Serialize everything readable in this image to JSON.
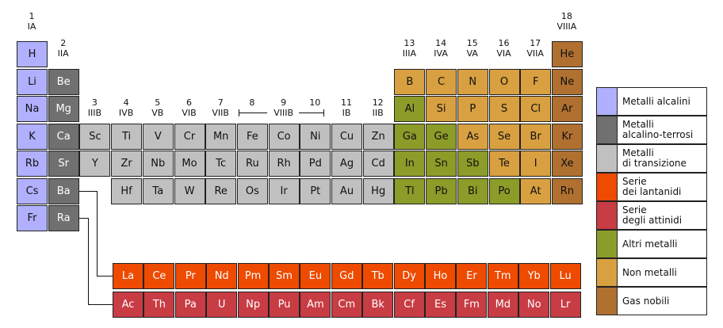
{
  "colors": {
    "alkali": "#b0b0ff",
    "alkaline_earth": "#707070",
    "transition": "#c0c0c0",
    "lanthanide": "#ee4a00",
    "actinide": "#c83c44",
    "other_metal": "#8c9c28",
    "nonmetal": "#d8a040",
    "noble_gas": "#b07030"
  },
  "group_labels": [
    {
      "num": "1",
      "roman": "IA",
      "col": 1,
      "row": 0
    },
    {
      "num": "2",
      "roman": "IIA",
      "col": 2,
      "row": 1
    },
    {
      "num": "3",
      "roman": "IIIB",
      "col": 3,
      "row": 3
    },
    {
      "num": "4",
      "roman": "IVB",
      "col": 4,
      "row": 3
    },
    {
      "num": "5",
      "roman": "VB",
      "col": 5,
      "row": 3
    },
    {
      "num": "6",
      "roman": "VIB",
      "col": 6,
      "row": 3
    },
    {
      "num": "7",
      "roman": "VIIB",
      "col": 7,
      "row": 3
    },
    {
      "num": "8",
      "roman": "",
      "col": 8,
      "row": 3
    },
    {
      "num": "9",
      "roman": "VIIIB",
      "col": 9,
      "row": 3
    },
    {
      "num": "10",
      "roman": "",
      "col": 10,
      "row": 3
    },
    {
      "num": "11",
      "roman": "IB",
      "col": 11,
      "row": 3
    },
    {
      "num": "12",
      "roman": "IIB",
      "col": 12,
      "row": 3
    },
    {
      "num": "13",
      "roman": "IIIA",
      "col": 13,
      "row": 1
    },
    {
      "num": "14",
      "roman": "IVA",
      "col": 14,
      "row": 1
    },
    {
      "num": "15",
      "roman": "VA",
      "col": 15,
      "row": 1
    },
    {
      "num": "16",
      "roman": "VIA",
      "col": 16,
      "row": 1
    },
    {
      "num": "17",
      "roman": "VIIA",
      "col": 17,
      "row": 1
    },
    {
      "num": "18",
      "roman": "VIIIA",
      "col": 18,
      "row": 0
    }
  ],
  "elements": [
    {
      "symbol": "H",
      "col": 1,
      "row": 1,
      "category": "alkali"
    },
    {
      "symbol": "He",
      "col": 18,
      "row": 1,
      "category": "noble_gas"
    },
    {
      "symbol": "Li",
      "col": 1,
      "row": 2,
      "category": "alkali"
    },
    {
      "symbol": "Be",
      "col": 2,
      "row": 2,
      "category": "alkaline_earth"
    },
    {
      "symbol": "B",
      "col": 13,
      "row": 2,
      "category": "nonmetal"
    },
    {
      "symbol": "C",
      "col": 14,
      "row": 2,
      "category": "nonmetal"
    },
    {
      "symbol": "N",
      "col": 15,
      "row": 2,
      "category": "nonmetal"
    },
    {
      "symbol": "O",
      "col": 16,
      "row": 2,
      "category": "nonmetal"
    },
    {
      "symbol": "F",
      "col": 17,
      "row": 2,
      "category": "nonmetal"
    },
    {
      "symbol": "Ne",
      "col": 18,
      "row": 2,
      "category": "noble_gas"
    },
    {
      "symbol": "Na",
      "col": 1,
      "row": 3,
      "category": "alkali"
    },
    {
      "symbol": "Mg",
      "col": 2,
      "row": 3,
      "category": "alkaline_earth"
    },
    {
      "symbol": "Al",
      "col": 13,
      "row": 3,
      "category": "other_metal"
    },
    {
      "symbol": "Si",
      "col": 14,
      "row": 3,
      "category": "nonmetal"
    },
    {
      "symbol": "P",
      "col": 15,
      "row": 3,
      "category": "nonmetal"
    },
    {
      "symbol": "S",
      "col": 16,
      "row": 3,
      "category": "nonmetal"
    },
    {
      "symbol": "Cl",
      "col": 17,
      "row": 3,
      "category": "nonmetal"
    },
    {
      "symbol": "Ar",
      "col": 18,
      "row": 3,
      "category": "noble_gas"
    },
    {
      "symbol": "K",
      "col": 1,
      "row": 4,
      "category": "alkali"
    },
    {
      "symbol": "Ca",
      "col": 2,
      "row": 4,
      "category": "alkaline_earth"
    },
    {
      "symbol": "Sc",
      "col": 3,
      "row": 4,
      "category": "transition"
    },
    {
      "symbol": "Ti",
      "col": 4,
      "row": 4,
      "category": "transition"
    },
    {
      "symbol": "V",
      "col": 5,
      "row": 4,
      "category": "transition"
    },
    {
      "symbol": "Cr",
      "col": 6,
      "row": 4,
      "category": "transition"
    },
    {
      "symbol": "Mn",
      "col": 7,
      "row": 4,
      "category": "transition"
    },
    {
      "symbol": "Fe",
      "col": 8,
      "row": 4,
      "category": "transition"
    },
    {
      "symbol": "Co",
      "col": 9,
      "row": 4,
      "category": "transition"
    },
    {
      "symbol": "Ni",
      "col": 10,
      "row": 4,
      "category": "transition"
    },
    {
      "symbol": "Cu",
      "col": 11,
      "row": 4,
      "category": "transition"
    },
    {
      "symbol": "Zn",
      "col": 12,
      "row": 4,
      "category": "transition"
    },
    {
      "symbol": "Ga",
      "col": 13,
      "row": 4,
      "category": "other_metal"
    },
    {
      "symbol": "Ge",
      "col": 14,
      "row": 4,
      "category": "other_metal"
    },
    {
      "symbol": "As",
      "col": 15,
      "row": 4,
      "category": "nonmetal"
    },
    {
      "symbol": "Se",
      "col": 16,
      "row": 4,
      "category": "nonmetal"
    },
    {
      "symbol": "Br",
      "col": 17,
      "row": 4,
      "category": "nonmetal"
    },
    {
      "symbol": "Kr",
      "col": 18,
      "row": 4,
      "category": "noble_gas"
    },
    {
      "symbol": "Rb",
      "col": 1,
      "row": 5,
      "category": "alkali"
    },
    {
      "symbol": "Sr",
      "col": 2,
      "row": 5,
      "category": "alkaline_earth"
    },
    {
      "symbol": "Y",
      "col": 3,
      "row": 5,
      "category": "transition"
    },
    {
      "symbol": "Zr",
      "col": 4,
      "row": 5,
      "category": "transition"
    },
    {
      "symbol": "Nb",
      "col": 5,
      "row": 5,
      "category": "transition"
    },
    {
      "symbol": "Mo",
      "col": 6,
      "row": 5,
      "category": "transition"
    },
    {
      "symbol": "Tc",
      "col": 7,
      "row": 5,
      "category": "transition"
    },
    {
      "symbol": "Ru",
      "col": 8,
      "row": 5,
      "category": "transition"
    },
    {
      "symbol": "Rh",
      "col": 9,
      "row": 5,
      "category": "transition"
    },
    {
      "symbol": "Pd",
      "col": 10,
      "row": 5,
      "category": "transition"
    },
    {
      "symbol": "Ag",
      "col": 11,
      "row": 5,
      "category": "transition"
    },
    {
      "symbol": "Cd",
      "col": 12,
      "row": 5,
      "category": "transition"
    },
    {
      "symbol": "In",
      "col": 13,
      "row": 5,
      "category": "other_metal"
    },
    {
      "symbol": "Sn",
      "col": 14,
      "row": 5,
      "category": "other_metal"
    },
    {
      "symbol": "Sb",
      "col": 15,
      "row": 5,
      "category": "other_metal"
    },
    {
      "symbol": "Te",
      "col": 16,
      "row": 5,
      "category": "nonmetal"
    },
    {
      "symbol": "I",
      "col": 17,
      "row": 5,
      "category": "nonmetal"
    },
    {
      "symbol": "Xe",
      "col": 18,
      "row": 5,
      "category": "noble_gas"
    },
    {
      "symbol": "Cs",
      "col": 1,
      "row": 6,
      "category": "alkali"
    },
    {
      "symbol": "Ba",
      "col": 2,
      "row": 6,
      "category": "alkaline_earth"
    },
    {
      "symbol": "Hf",
      "col": 4,
      "row": 6,
      "category": "transition"
    },
    {
      "symbol": "Ta",
      "col": 5,
      "row": 6,
      "category": "transition"
    },
    {
      "symbol": "W",
      "col": 6,
      "row": 6,
      "category": "transition"
    },
    {
      "symbol": "Re",
      "col": 7,
      "row": 6,
      "category": "transition"
    },
    {
      "symbol": "Os",
      "col": 8,
      "row": 6,
      "category": "transition"
    },
    {
      "symbol": "Ir",
      "col": 9,
      "row": 6,
      "category": "transition"
    },
    {
      "symbol": "Pt",
      "col": 10,
      "row": 6,
      "category": "transition"
    },
    {
      "symbol": "Au",
      "col": 11,
      "row": 6,
      "category": "transition"
    },
    {
      "symbol": "Hg",
      "col": 12,
      "row": 6,
      "category": "transition"
    },
    {
      "symbol": "Tl",
      "col": 13,
      "row": 6,
      "category": "other_metal"
    },
    {
      "symbol": "Pb",
      "col": 14,
      "row": 6,
      "category": "other_metal"
    },
    {
      "symbol": "Bi",
      "col": 15,
      "row": 6,
      "category": "other_metal"
    },
    {
      "symbol": "Po",
      "col": 16,
      "row": 6,
      "category": "other_metal"
    },
    {
      "symbol": "At",
      "col": 17,
      "row": 6,
      "category": "nonmetal"
    },
    {
      "symbol": "Rn",
      "col": 18,
      "row": 6,
      "category": "noble_gas"
    },
    {
      "symbol": "Fr",
      "col": 1,
      "row": 7,
      "category": "alkali"
    },
    {
      "symbol": "Ra",
      "col": 2,
      "row": 7,
      "category": "alkaline_earth"
    }
  ],
  "lanthanides": [
    "La",
    "Ce",
    "Pr",
    "Nd",
    "Pm",
    "Sm",
    "Eu",
    "Gd",
    "Tb",
    "Dy",
    "Ho",
    "Er",
    "Tm",
    "Yb",
    "Lu"
  ],
  "actinides": [
    "Ac",
    "Th",
    "Pa",
    "U",
    "Np",
    "Pu",
    "Am",
    "Cm",
    "Bk",
    "Cf",
    "Es",
    "Fm",
    "Md",
    "No",
    "Lr"
  ],
  "legend": [
    {
      "category": "alkali",
      "label": "Metalli alcalini"
    },
    {
      "category": "alkaline_earth",
      "label": "Metalli\nalcalino-terrosi"
    },
    {
      "category": "transition",
      "label": "Metalli\ndi transizione"
    },
    {
      "category": "lanthanide",
      "label": "Serie\ndei lantanidi"
    },
    {
      "category": "actinide",
      "label": "Serie\ndegli attinidi"
    },
    {
      "category": "other_metal",
      "label": "Altri metalli"
    },
    {
      "category": "nonmetal",
      "label": "Non metalli"
    },
    {
      "category": "noble_gas",
      "label": "Gas nobili"
    }
  ]
}
